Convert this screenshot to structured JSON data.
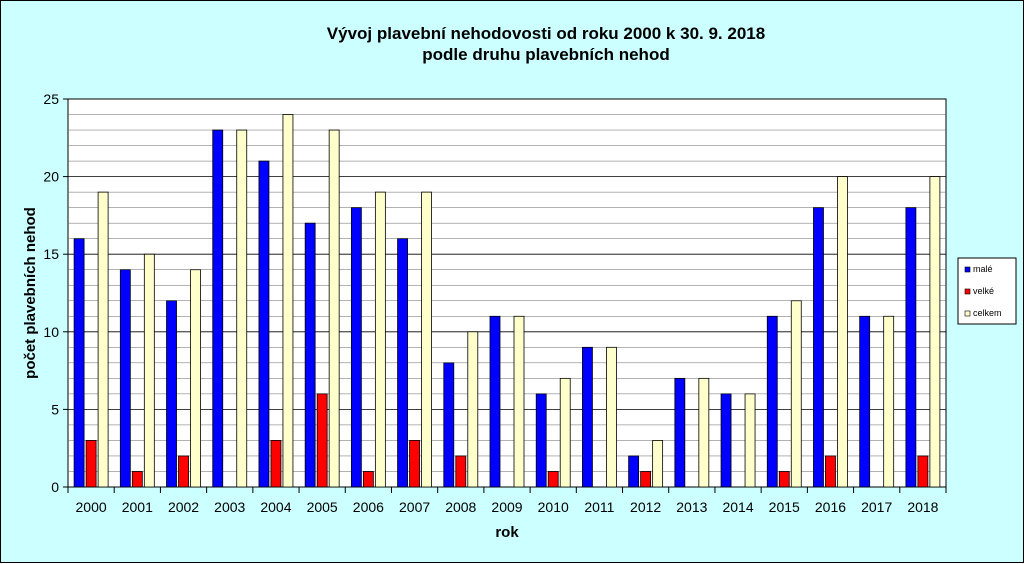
{
  "chart_data": {
    "type": "bar",
    "title": [
      "Vývoj plavební nehodovosti od roku 2000 k 30. 9. 2018",
      "podle druhu plavebních nehod"
    ],
    "xlabel": "rok",
    "ylabel": "počet plavebních nehod",
    "categories": [
      "2000",
      "2001",
      "2002",
      "2003",
      "2004",
      "2005",
      "2006",
      "2007",
      "2008",
      "2009",
      "2010",
      "2011",
      "2012",
      "2013",
      "2014",
      "2015",
      "2016",
      "2017",
      "2018"
    ],
    "series": [
      {
        "name": "malé",
        "color": "#0000ff",
        "values": [
          16,
          14,
          12,
          23,
          21,
          17,
          18,
          16,
          8,
          11,
          6,
          9,
          2,
          7,
          6,
          11,
          18,
          11,
          18
        ]
      },
      {
        "name": "velké",
        "color": "#ff0000",
        "values": [
          3,
          1,
          2,
          0,
          3,
          6,
          1,
          3,
          2,
          0,
          1,
          0,
          1,
          0,
          0,
          1,
          2,
          0,
          2
        ]
      },
      {
        "name": "celkem",
        "color": "#ffffcc",
        "values": [
          19,
          15,
          14,
          23,
          24,
          23,
          19,
          19,
          10,
          11,
          7,
          9,
          3,
          7,
          6,
          12,
          20,
          11,
          20
        ]
      }
    ],
    "ylim": [
      0,
      25
    ],
    "yticks": [
      0,
      5,
      10,
      15,
      20,
      25
    ],
    "grid": true,
    "legend_position": "right",
    "colors": {
      "background": "#ccffff",
      "plot_area": "#ffffff",
      "gridline": "#000000"
    }
  }
}
